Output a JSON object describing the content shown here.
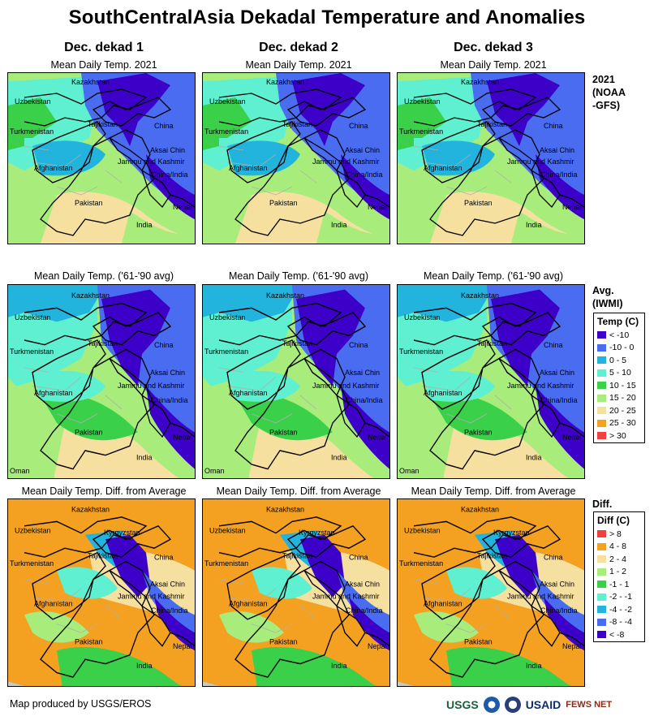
{
  "title": "SouthCentralAsia Dekadal Temperature and Anomalies",
  "columns": [
    "Dec. dekad 1",
    "Dec. dekad 2",
    "Dec. dekad 3"
  ],
  "panel_titles": {
    "current": "Mean Daily Temp. 2021",
    "average": "Mean Daily Temp. ('61-'90 avg)",
    "diff": "Mean Daily Temp. Diff. from Average"
  },
  "row_labels": {
    "current": [
      "2021",
      "(NOAA",
      "-GFS)"
    ],
    "average": [
      "Avg.",
      "(IWMI)"
    ],
    "diff": [
      "Diff."
    ]
  },
  "map_labels": {
    "kazakhstan": "Kazakhstan",
    "uzbekistan": "Uzbekistan",
    "turkmenistan": "Turkmenistan",
    "tajikistan": "Tajikistan",
    "kyrgyzstan": "Kyrgyzstan",
    "china": "China",
    "afghanistan": "Afghanistan",
    "aksai_chin": "Aksai Chin",
    "jammu_kashmir": "Jammu and Kashmir",
    "china_india": "China/India",
    "pakistan": "Pakistan",
    "nepal": "Nepal",
    "india": "India",
    "oman": "Oman"
  },
  "temp_legend": {
    "title": "Temp (C)",
    "items": [
      {
        "label": "< -10",
        "color": "#3c00c8"
      },
      {
        "label": "-10 - 0",
        "color": "#4a6cf0"
      },
      {
        "label": "0 - 5",
        "color": "#22b4dc"
      },
      {
        "label": "5 - 10",
        "color": "#5ef0d0"
      },
      {
        "label": "10 - 15",
        "color": "#3ad04a"
      },
      {
        "label": "15 - 20",
        "color": "#a8ec7c"
      },
      {
        "label": "20 - 25",
        "color": "#f6e0a0"
      },
      {
        "label": "25 - 30",
        "color": "#f4a020"
      },
      {
        "label": "> 30",
        "color": "#f04040"
      }
    ]
  },
  "diff_legend": {
    "title": "Diff (C)",
    "items": [
      {
        "label": "> 8",
        "color": "#f04040"
      },
      {
        "label": "4 - 8",
        "color": "#f4a020"
      },
      {
        "label": "2 - 4",
        "color": "#f6e0a0"
      },
      {
        "label": "1 - 2",
        "color": "#a8ec7c"
      },
      {
        "label": "-1 - 1",
        "color": "#3ad04a"
      },
      {
        "label": "-2 - -1",
        "color": "#5ef0d0"
      },
      {
        "label": "-4 - -2",
        "color": "#22b4dc"
      },
      {
        "label": "-8 - -4",
        "color": "#4a6cf0"
      },
      {
        "label": "< -8",
        "color": "#3c00c8"
      }
    ]
  },
  "footer": "Map produced by USGS/EROS",
  "logos": {
    "usgs": "USGS",
    "usaid": "USAID",
    "fews": "FEWS NET"
  }
}
